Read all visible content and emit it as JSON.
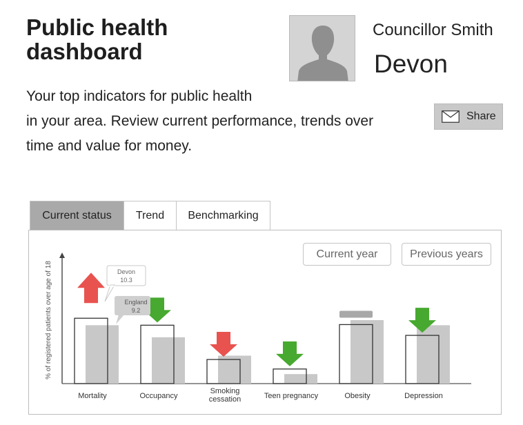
{
  "header": {
    "title": "Public health dashboard",
    "user_name": "Councillor Smith",
    "region": "Devon"
  },
  "intro": {
    "line1": "Your top indicators for public health",
    "line2": "in your area. Review current performance, trends over",
    "line3": "time and value for money."
  },
  "share": {
    "label": "Share",
    "icon": "mail-icon"
  },
  "tabs": [
    {
      "label": "Current status",
      "active": true
    },
    {
      "label": "Trend",
      "active": false
    },
    {
      "label": "Benchmarking",
      "active": false
    }
  ],
  "toggles": {
    "current": "Current year",
    "previous": "Previous years"
  },
  "colors": {
    "up": "#e8534f",
    "down": "#47a92f",
    "neutral": "#a8a8a8",
    "england_bar": "#c8c8c8",
    "tab_active": "#a9a9a9"
  },
  "chart_data": {
    "type": "bar",
    "ylabel": "% of registered patients over age of 18",
    "categories": [
      "Mortality",
      "Occupancy",
      "Smoking cessation",
      "Teen pregnancy",
      "Obesity",
      "Depression"
    ],
    "series": [
      {
        "name": "Devon",
        "values": [
          10.3,
          9.2,
          3.8,
          2.3,
          9.3,
          7.6
        ]
      },
      {
        "name": "England",
        "values": [
          9.2,
          7.3,
          4.4,
          1.5,
          10.0,
          9.2
        ]
      }
    ],
    "indicators": [
      "up",
      "down",
      "down",
      "down",
      "neutral",
      "down"
    ],
    "ylim": [
      0,
      20
    ],
    "callouts": [
      {
        "label": "Devon",
        "value": "10.3"
      },
      {
        "label": "England",
        "value": "9.2"
      }
    ]
  }
}
